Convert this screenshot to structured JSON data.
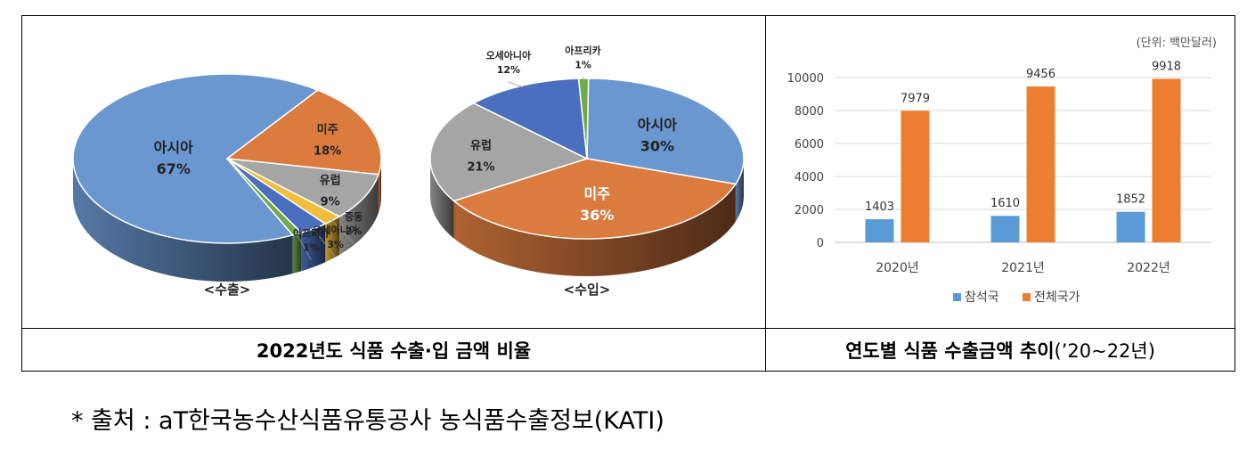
{
  "pie_caption_export": "<수출>",
  "pie_caption_import": "<수입>",
  "left_table_title": "2022년도 식품 수출·입 금액 비율",
  "right_table_title": "연도별 식품 수출금액 추이",
  "right_table_title_suffix": "(’20~22년)",
  "bar_unit_label": "(단위: 백만달러)",
  "source_note": "* 출처 : aT한국농수산식품유통공사 농식품수출정보(KATI)",
  "chart_data": [
    {
      "type": "pie",
      "title": "<수출>",
      "labels": [
        "아시아",
        "미주",
        "유럽",
        "중동",
        "오세아니아",
        "아프리카"
      ],
      "values": [
        67,
        18,
        9,
        2,
        3,
        1
      ],
      "display": [
        "67%",
        "18%",
        "9%",
        "2%",
        "3%",
        "1%"
      ],
      "colors": [
        "#6a97d0",
        "#db7b3e",
        "#a5a5a5",
        "#f2bd3a",
        "#4a6fbf",
        "#6fab4a"
      ]
    },
    {
      "type": "pie",
      "title": "<수입>",
      "labels": [
        "아시아",
        "미주",
        "유럽",
        "오세아니아",
        "아프리카"
      ],
      "values": [
        30,
        36,
        21,
        12,
        1
      ],
      "display": [
        "30%",
        "36%",
        "21%",
        "12%",
        "1%"
      ],
      "colors": [
        "#6a97d0",
        "#db7b3e",
        "#a5a5a5",
        "#4a6fbf",
        "#6fab4a"
      ]
    },
    {
      "type": "bar",
      "categories": [
        "2020년",
        "2021년",
        "2022년"
      ],
      "series": [
        {
          "name": "참석국",
          "values": [
            1403,
            1610,
            1852
          ],
          "color": "#5b9bd5"
        },
        {
          "name": "전체국가",
          "values": [
            7979,
            9456,
            9918
          ],
          "color": "#ed7d31"
        }
      ],
      "ylim": [
        0,
        10000
      ],
      "yticks": [
        0,
        2000,
        4000,
        6000,
        8000,
        10000
      ],
      "unit": "(단위: 백만달러)",
      "legend": "bottom"
    }
  ]
}
